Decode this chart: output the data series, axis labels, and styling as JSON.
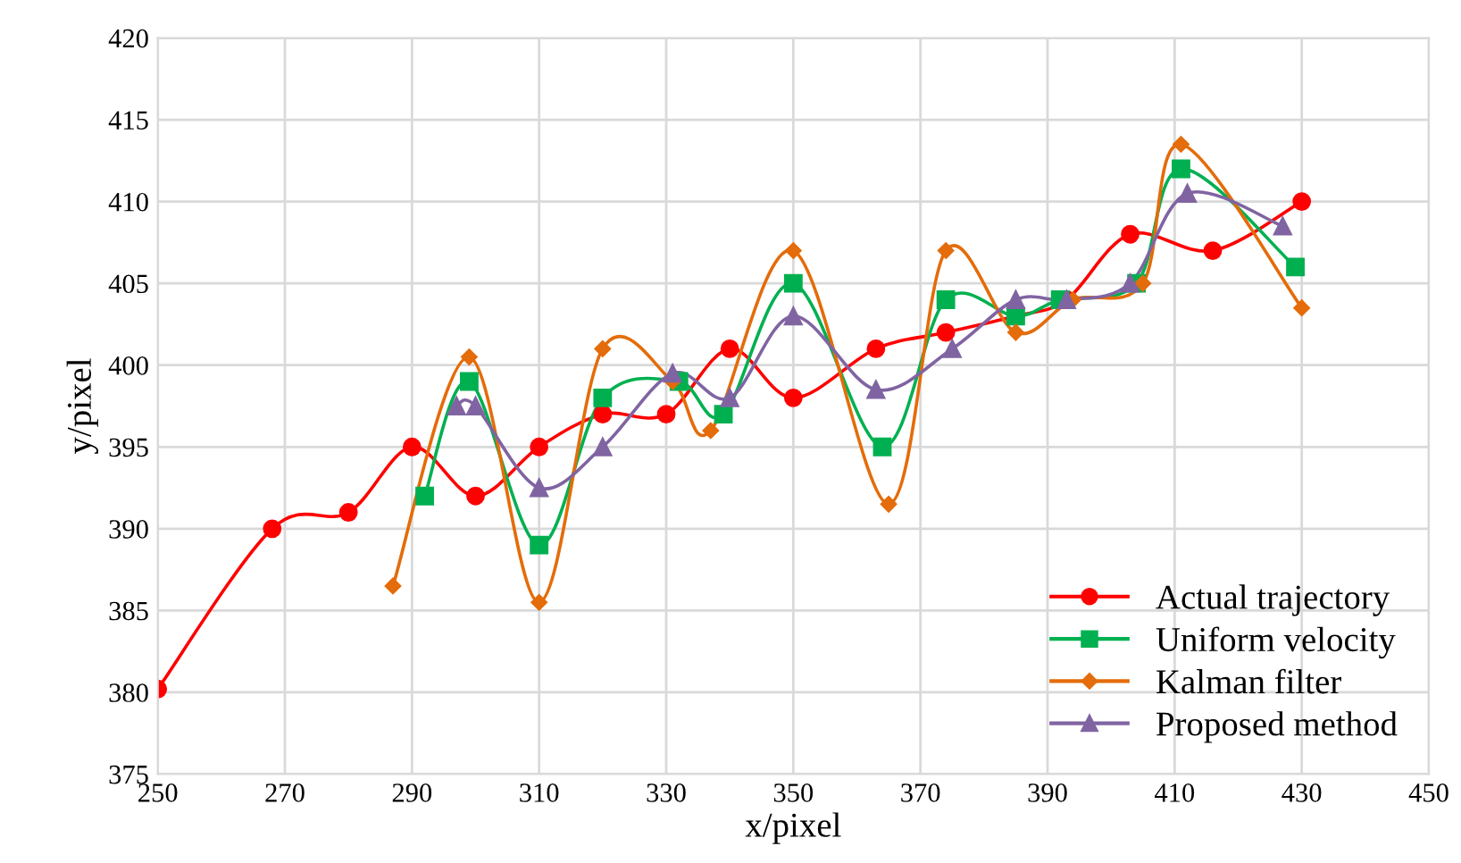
{
  "chart_data": {
    "type": "line",
    "xlabel": "x/pixel",
    "ylabel": "y/pixel",
    "xlim": [
      250,
      450
    ],
    "xticks": [
      250,
      270,
      290,
      310,
      330,
      350,
      370,
      390,
      410,
      430,
      450
    ],
    "ylim": [
      375,
      420
    ],
    "yticks": [
      375,
      380,
      385,
      390,
      395,
      400,
      405,
      410,
      415,
      420
    ],
    "grid": true,
    "legend": "bottom right",
    "line_style": "solid",
    "series": [
      {
        "name": "Actual trajectory",
        "color": "#ff0000",
        "marker": "circle",
        "x": [
          250,
          268,
          280,
          290,
          300,
          310,
          320,
          330,
          340,
          350,
          363,
          374,
          385,
          393,
          403,
          416,
          430
        ],
        "values": [
          380.2,
          390,
          391,
          395,
          392,
          395,
          397,
          397,
          401,
          398,
          401,
          402,
          403,
          404,
          408,
          407,
          410
        ]
      },
      {
        "name": "Uniform velocity",
        "color": "#00b050",
        "marker": "square",
        "x": [
          292,
          299,
          310,
          320,
          332,
          339,
          350,
          364,
          374,
          385,
          392,
          404,
          411,
          429
        ],
        "values": [
          392,
          399,
          389,
          398,
          399,
          397,
          405,
          395,
          404,
          403,
          404,
          405,
          412,
          406
        ]
      },
      {
        "name": "Kalman filter",
        "color": "#e46c0a",
        "marker": "diamond",
        "x": [
          287,
          299,
          310,
          320,
          331,
          337,
          350,
          365,
          374,
          385,
          394,
          405,
          411,
          430
        ],
        "values": [
          386.5,
          400.5,
          385.5,
          401,
          399,
          396,
          407,
          391.5,
          407,
          402,
          404,
          405,
          413.5,
          403.5
        ]
      },
      {
        "name": "Proposed method",
        "color": "#8064a2",
        "marker": "triangle",
        "x": [
          297,
          300,
          310,
          320,
          331,
          340,
          350,
          363,
          375,
          385,
          393,
          403,
          412,
          427
        ],
        "values": [
          397.5,
          397.5,
          392.5,
          395,
          399.5,
          398,
          403,
          398.5,
          401,
          404,
          404,
          405,
          410.5,
          408.5
        ]
      }
    ]
  }
}
